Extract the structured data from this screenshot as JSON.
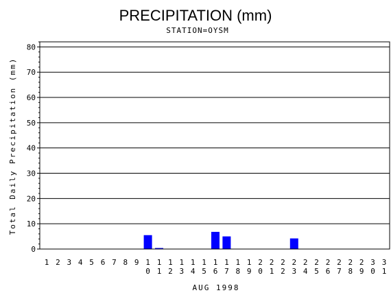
{
  "chart_data": {
    "type": "bar",
    "title": "PRECIPITATION (mm)",
    "subtitle": "STATION=OYSM",
    "xlabel": "AUG 1998",
    "ylabel": "Total Daily Precipitation (mm)",
    "ylim": [
      0,
      82
    ],
    "yticks": [
      0,
      10,
      20,
      30,
      40,
      50,
      60,
      70,
      80
    ],
    "grid": true,
    "bar_color": "#0000ff",
    "categories": [
      "1",
      "2",
      "3",
      "4",
      "5",
      "6",
      "7",
      "8",
      "9",
      "10",
      "11",
      "12",
      "13",
      "14",
      "15",
      "16",
      "17",
      "18",
      "19",
      "20",
      "21",
      "22",
      "23",
      "24",
      "25",
      "26",
      "27",
      "28",
      "29",
      "30",
      "31"
    ],
    "values": [
      0,
      0,
      0,
      0,
      0,
      0,
      0,
      0,
      0,
      5.5,
      0.4,
      0,
      0,
      0,
      0,
      6.8,
      5.0,
      0,
      0,
      0,
      0,
      0,
      4.2,
      0,
      0,
      0,
      0,
      0,
      0,
      0,
      0
    ]
  }
}
